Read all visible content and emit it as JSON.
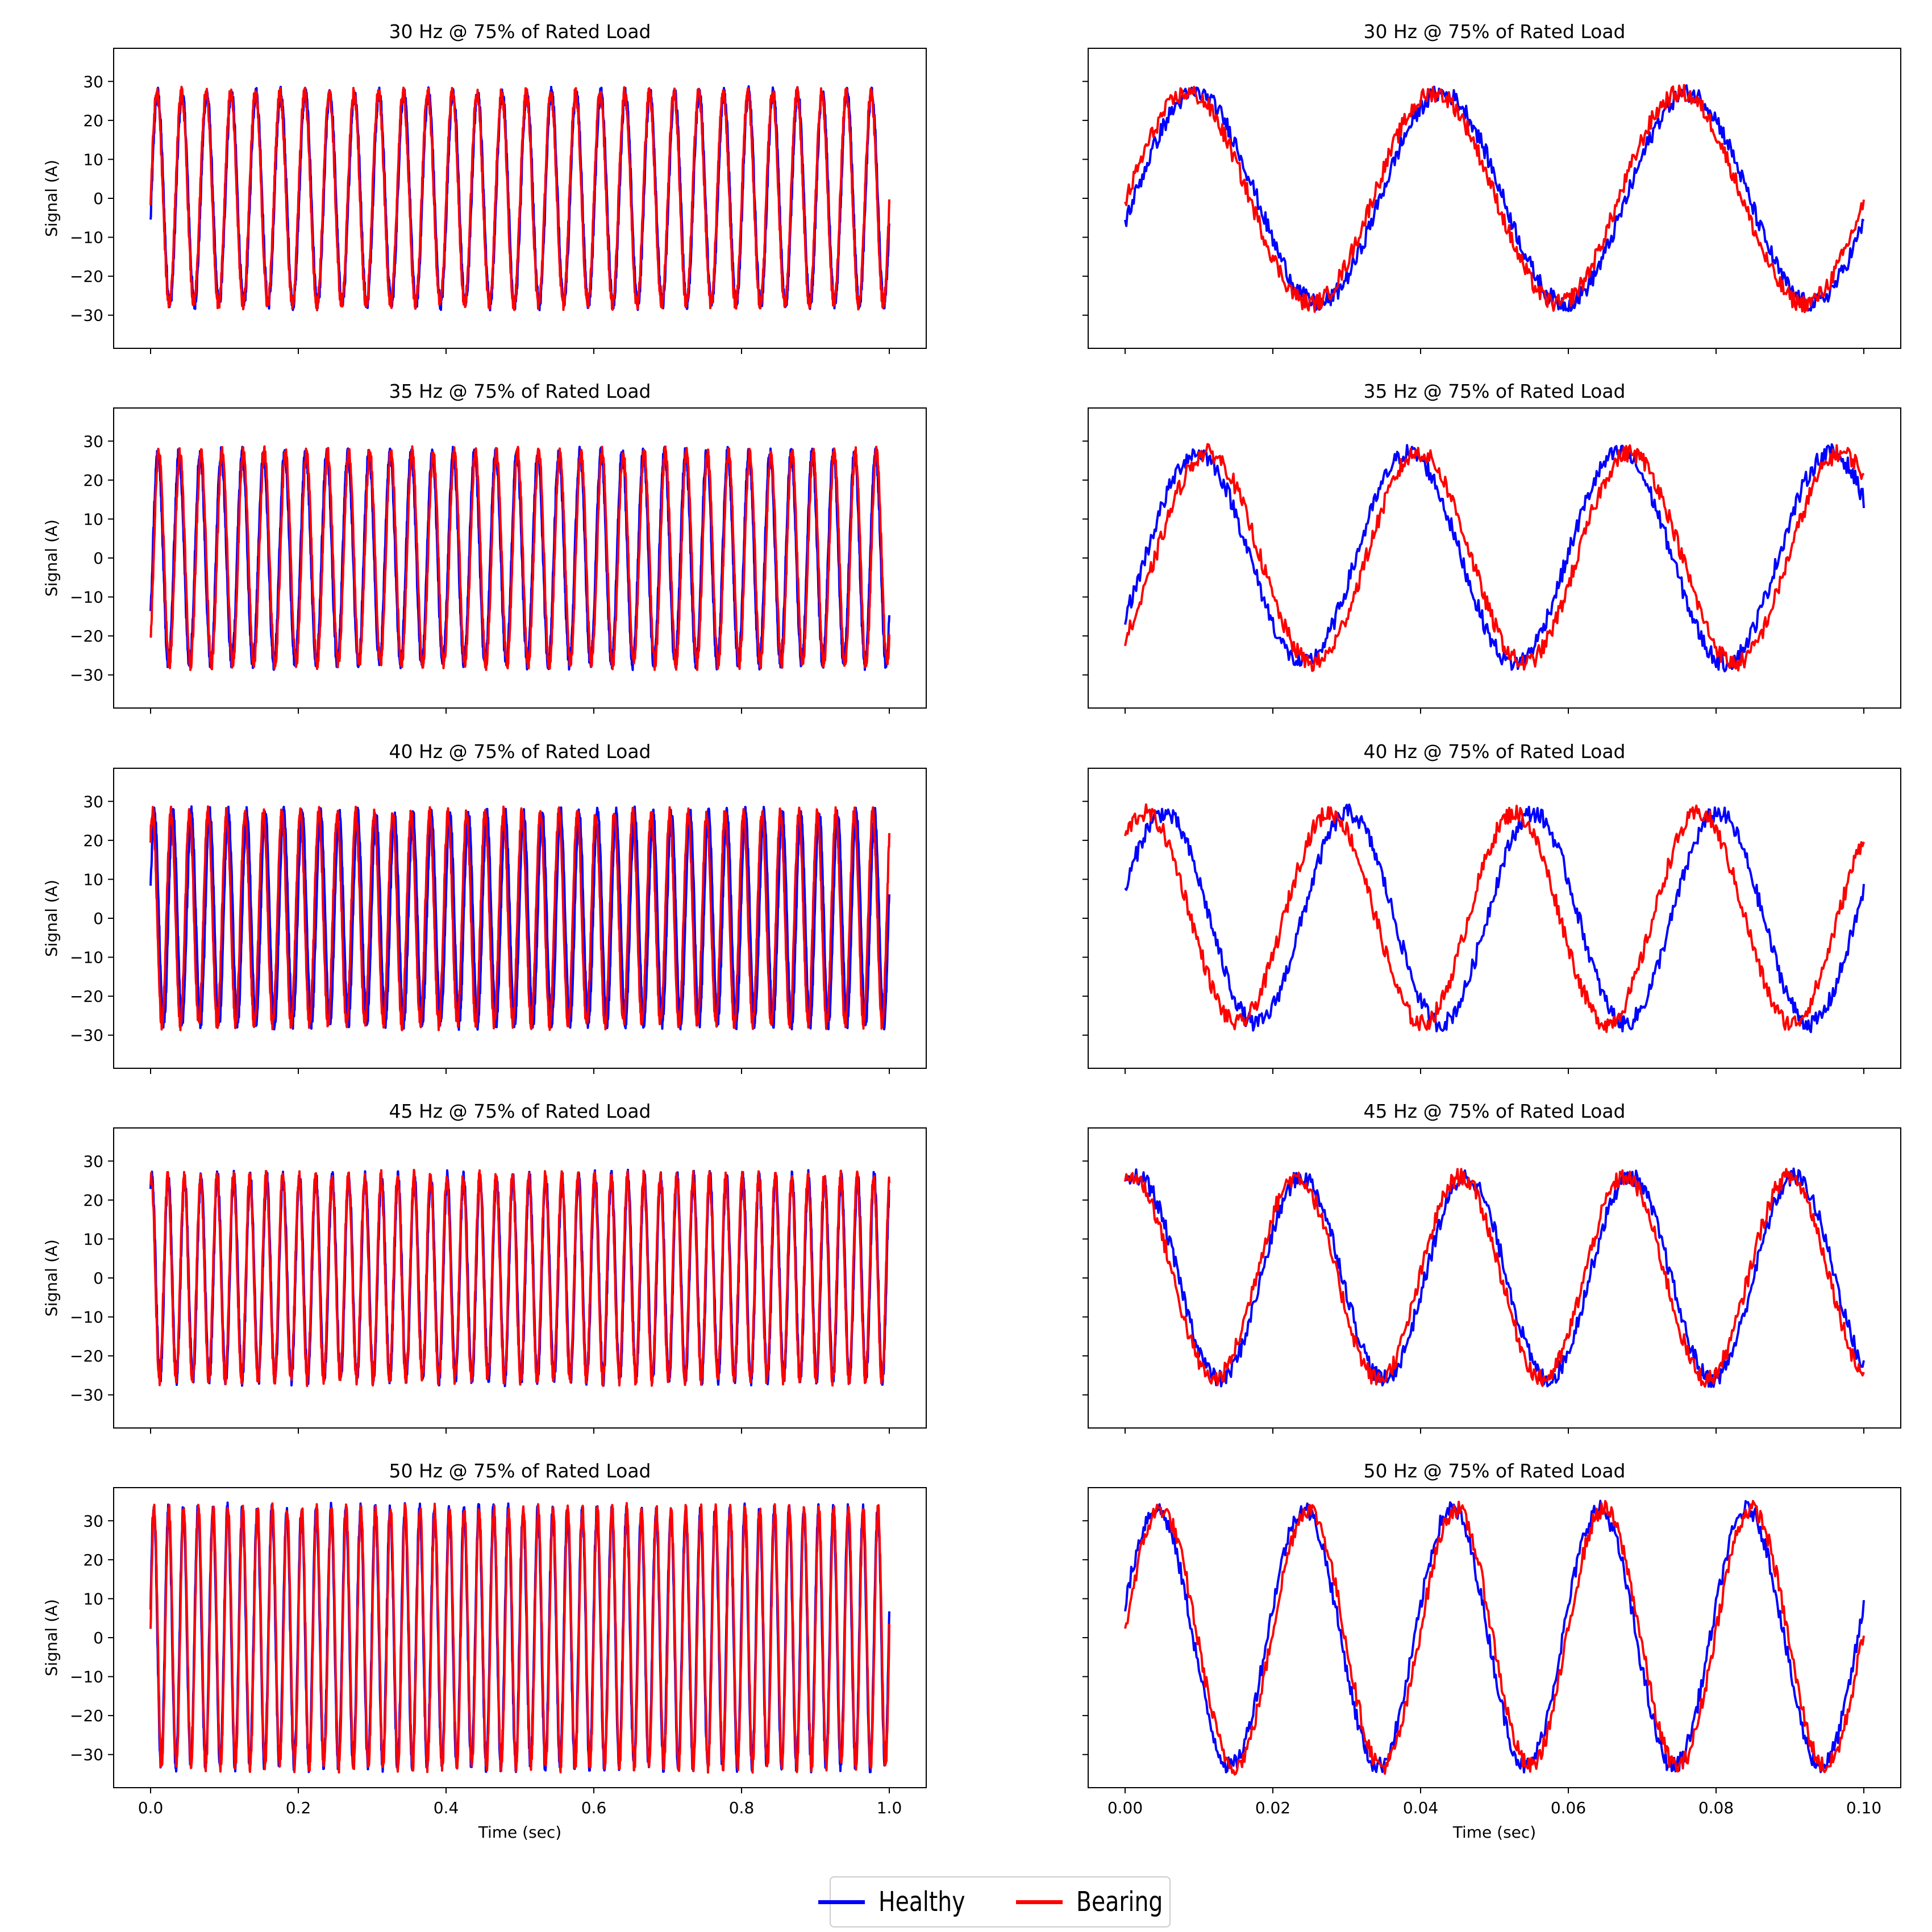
{
  "chart_data": {
    "type": "line",
    "layout": "5 rows x 2 columns",
    "ylabel": "Signal (A)",
    "xlabel": "Time (sec)",
    "ylim": [
      -38.5,
      38.5
    ],
    "yticks": [
      -30,
      -20,
      -10,
      0,
      10,
      20,
      30
    ],
    "legend": {
      "placement": "bottom-center",
      "entries": [
        {
          "name": "Healthy",
          "color": "#0000ff"
        },
        {
          "name": "Bearing",
          "color": "#ff0000"
        }
      ]
    },
    "columns": [
      {
        "xlim": [
          -0.05,
          1.05
        ],
        "xticks": [
          "0.0",
          "0.2",
          "0.4",
          "0.6",
          "0.8",
          "1.0"
        ],
        "xtick_values": [
          0.0,
          0.2,
          0.4,
          0.6,
          0.8,
          1.0
        ],
        "x_range": [
          0,
          1.0
        ]
      },
      {
        "xlim": [
          -0.005,
          0.105
        ],
        "xticks": [
          "0.00",
          "0.02",
          "0.04",
          "0.06",
          "0.08",
          "0.10"
        ],
        "xtick_values": [
          0.0,
          0.02,
          0.04,
          0.06,
          0.08,
          0.1
        ],
        "x_range": [
          0,
          0.1
        ]
      }
    ],
    "panels": [
      {
        "title": "30 Hz @ 75% of Rated Load",
        "series": [
          {
            "name": "Healthy",
            "color": "#0000ff",
            "frequency_hz": 30,
            "amplitude": 27,
            "start_value": -6
          },
          {
            "name": "Bearing",
            "color": "#ff0000",
            "frequency_hz": 30,
            "amplitude": 27,
            "start_value": -1
          }
        ]
      },
      {
        "title": "35 Hz @ 75% of Rated Load",
        "series": [
          {
            "name": "Healthy",
            "color": "#0000ff",
            "frequency_hz": 35,
            "amplitude": 27,
            "start_value": -15
          },
          {
            "name": "Bearing",
            "color": "#ff0000",
            "frequency_hz": 35,
            "amplitude": 27,
            "start_value": -21
          }
        ]
      },
      {
        "title": "40 Hz @ 75% of Rated Load",
        "series": [
          {
            "name": "Healthy",
            "color": "#0000ff",
            "frequency_hz": 40,
            "amplitude": 27,
            "start_value": 7
          },
          {
            "name": "Bearing",
            "color": "#ff0000",
            "frequency_hz": 40,
            "amplitude": 27,
            "start_value": 21
          }
        ]
      },
      {
        "title": "45 Hz @ 75% of Rated Load",
        "series": [
          {
            "name": "Healthy",
            "color": "#0000ff",
            "frequency_hz": 45,
            "amplitude": 26,
            "start_value": 23
          },
          {
            "name": "Bearing",
            "color": "#ff0000",
            "frequency_hz": 45,
            "amplitude": 26,
            "start_value": 25
          }
        ]
      },
      {
        "title": "50 Hz @ 75% of Rated Load",
        "series": [
          {
            "name": "Healthy",
            "color": "#0000ff",
            "frequency_hz": 50,
            "amplitude": 33,
            "start_value": 8
          },
          {
            "name": "Bearing",
            "color": "#ff0000",
            "frequency_hz": 50,
            "amplitude": 33,
            "start_value": 2
          }
        ]
      }
    ]
  }
}
